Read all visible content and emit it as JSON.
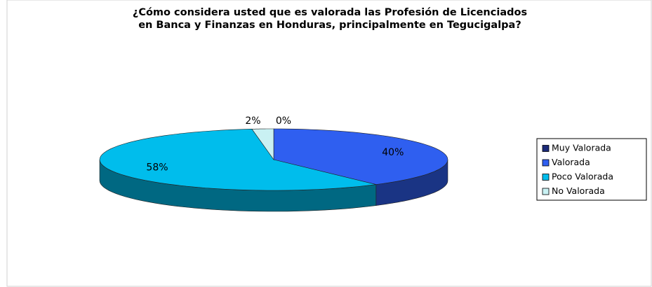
{
  "chart_data": {
    "type": "pie3d",
    "title": [
      "¿Cómo considera usted que es valorada las Profesión de Licenciados",
      "en Banca y Finanzas en Honduras, principalmente en Tegucigalpa?"
    ],
    "categories": [
      "Muy Valorada",
      "Valorada",
      "Poco Valorada",
      "No Valorada"
    ],
    "values": [
      0,
      40,
      58,
      2
    ],
    "value_labels": [
      "0%",
      "40%",
      "58%",
      "2%"
    ],
    "colors": [
      "#1b2a78",
      "#2f5ff0",
      "#00bdec",
      "#c9f1f3"
    ],
    "legend": "right"
  }
}
